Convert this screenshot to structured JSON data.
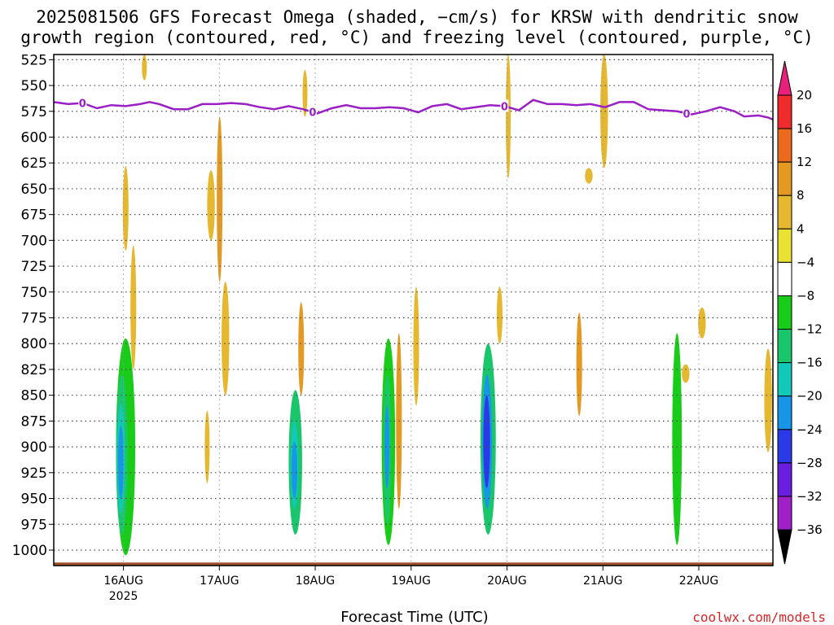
{
  "title": {
    "line1": "2025081506 GFS Forecast Omega (shaded, −cm/s) for KRSW with dendritic snow",
    "line2": "growth region (contoured, red, °C) and freezing level (contoured, purple, °C)"
  },
  "credit": "coolwx.com/models",
  "chart_data": {
    "type": "heatmap",
    "title": "2025081506 GFS Forecast Omega (shaded, −cm/s) for KRSW with dendritic snow growth region (contoured, red, °C) and freezing level (contoured, purple, °C)",
    "xlabel": "Forecast Time (UTC)",
    "ylabel": "",
    "x_ticks": [
      {
        "day": 0.727,
        "label": "16AUG",
        "sub": "2025"
      },
      {
        "day": 1.727,
        "label": "17AUG",
        "sub": ""
      },
      {
        "day": 2.727,
        "label": "18AUG",
        "sub": ""
      },
      {
        "day": 3.727,
        "label": "19AUG",
        "sub": ""
      },
      {
        "day": 4.727,
        "label": "20AUG",
        "sub": ""
      },
      {
        "day": 5.727,
        "label": "21AUG",
        "sub": ""
      },
      {
        "day": 6.727,
        "label": "22AUG",
        "sub": ""
      }
    ],
    "x_range_days": [
      0,
      7.5
    ],
    "y_levels_hpa": [
      525,
      550,
      575,
      600,
      625,
      650,
      675,
      700,
      725,
      750,
      775,
      800,
      825,
      850,
      875,
      900,
      925,
      950,
      975,
      1000
    ],
    "y_range_hpa": [
      520,
      1015
    ],
    "grid": true,
    "colorbar": {
      "levels": [
        20,
        16,
        12,
        8,
        4,
        -4,
        -8,
        -12,
        -16,
        -20,
        -24,
        -28,
        -32,
        -36
      ],
      "colors": [
        "#e8207c",
        "#ef2b2b",
        "#ea6a1e",
        "#e49a22",
        "#e6b830",
        "#e9e233",
        "#ffffff",
        "#19cc19",
        "#1ac66b",
        "#12c8b8",
        "#1796e8",
        "#2a3ae6",
        "#6a1ee0",
        "#a020c8",
        "#a6a6a6",
        "#000000"
      ]
    },
    "freezing_level": {
      "label": "0",
      "points": [
        [
          0.0,
          566
        ],
        [
          0.15,
          568
        ],
        [
          0.3,
          567
        ],
        [
          0.45,
          572
        ],
        [
          0.6,
          569
        ],
        [
          0.75,
          570
        ],
        [
          0.9,
          568
        ],
        [
          1.0,
          566
        ],
        [
          1.1,
          568
        ],
        [
          1.25,
          573
        ],
        [
          1.4,
          573
        ],
        [
          1.55,
          568
        ],
        [
          1.7,
          568
        ],
        [
          1.85,
          567
        ],
        [
          2.0,
          568
        ],
        [
          2.15,
          571
        ],
        [
          2.3,
          573
        ],
        [
          2.45,
          570
        ],
        [
          2.6,
          573
        ],
        [
          2.75,
          577
        ],
        [
          2.9,
          572
        ],
        [
          3.05,
          569
        ],
        [
          3.2,
          572
        ],
        [
          3.35,
          572
        ],
        [
          3.5,
          571
        ],
        [
          3.65,
          572
        ],
        [
          3.8,
          576
        ],
        [
          3.95,
          570
        ],
        [
          4.1,
          568
        ],
        [
          4.25,
          573
        ],
        [
          4.4,
          571
        ],
        [
          4.55,
          569
        ],
        [
          4.7,
          570
        ],
        [
          4.85,
          574
        ],
        [
          5.0,
          564
        ],
        [
          5.15,
          568
        ],
        [
          5.3,
          568
        ],
        [
          5.45,
          569
        ],
        [
          5.6,
          568
        ],
        [
          5.75,
          571
        ],
        [
          5.9,
          566
        ],
        [
          6.05,
          566
        ],
        [
          6.2,
          573
        ],
        [
          6.35,
          574
        ],
        [
          6.5,
          575
        ],
        [
          6.65,
          578
        ],
        [
          6.8,
          575
        ],
        [
          6.95,
          571
        ],
        [
          7.1,
          575
        ],
        [
          7.2,
          580
        ],
        [
          7.35,
          579
        ],
        [
          7.45,
          581
        ],
        [
          7.5,
          583
        ]
      ],
      "label_days": [
        0.3,
        2.7,
        4.7,
        6.6
      ]
    },
    "omega_regions": [
      {
        "x": 0.65,
        "w": 0.2,
        "p_top": 795,
        "p_bot": 1005,
        "value": -10
      },
      {
        "x": 0.65,
        "w": 0.12,
        "p_top": 830,
        "p_bot": 985,
        "value": -14
      },
      {
        "x": 0.66,
        "w": 0.08,
        "p_top": 858,
        "p_bot": 965,
        "value": -18
      },
      {
        "x": 0.67,
        "w": 0.06,
        "p_top": 880,
        "p_bot": 950,
        "value": -22
      },
      {
        "x": 2.45,
        "w": 0.2,
        "p_top": 820,
        "p_bot": 1002,
        "value": -8
      },
      {
        "x": 2.45,
        "w": 0.14,
        "p_top": 845,
        "p_bot": 985,
        "value": -14
      },
      {
        "x": 2.47,
        "w": 0.08,
        "p_top": 875,
        "p_bot": 960,
        "value": -18
      },
      {
        "x": 2.48,
        "w": 0.06,
        "p_top": 895,
        "p_bot": 950,
        "value": -22
      },
      {
        "x": 3.42,
        "w": 0.14,
        "p_top": 795,
        "p_bot": 995,
        "value": -10
      },
      {
        "x": 3.44,
        "w": 0.08,
        "p_top": 830,
        "p_bot": 975,
        "value": -16
      },
      {
        "x": 3.45,
        "w": 0.05,
        "p_top": 860,
        "p_bot": 940,
        "value": -22
      },
      {
        "x": 4.42,
        "w": 0.22,
        "p_top": 760,
        "p_bot": 1002,
        "value": -8
      },
      {
        "x": 4.45,
        "w": 0.16,
        "p_top": 800,
        "p_bot": 985,
        "value": -14
      },
      {
        "x": 4.47,
        "w": 0.1,
        "p_top": 830,
        "p_bot": 960,
        "value": -22
      },
      {
        "x": 4.48,
        "w": 0.07,
        "p_top": 850,
        "p_bot": 940,
        "value": -26
      },
      {
        "x": 6.45,
        "w": 0.1,
        "p_top": 790,
        "p_bot": 995,
        "value": -12
      },
      {
        "x": 5.38,
        "w": 0.08,
        "p_top": 830,
        "p_bot": 982,
        "value": -6
      },
      {
        "x": 5.77,
        "w": 0.1,
        "p_top": 895,
        "p_bot": 982,
        "value": -6
      },
      {
        "x": 0.77,
        "w": 0.05,
        "p_top": 545,
        "p_bot": 605,
        "value": -6
      },
      {
        "x": 0.98,
        "w": 0.04,
        "p_top": 578,
        "p_bot": 695,
        "value": -6
      },
      {
        "x": 1.98,
        "w": 0.1,
        "p_top": 572,
        "p_bot": 685,
        "value": -6
      },
      {
        "x": 2.78,
        "w": 0.06,
        "p_top": 633,
        "p_bot": 705,
        "value": -6
      },
      {
        "x": 2.88,
        "w": 0.06,
        "p_top": 805,
        "p_bot": 980,
        "value": -6
      },
      {
        "x": 3.62,
        "w": 0.05,
        "p_top": 520,
        "p_bot": 660,
        "value": -6
      },
      {
        "x": 4.05,
        "w": 0.05,
        "p_top": 530,
        "p_bot": 610,
        "value": -6
      },
      {
        "x": 4.3,
        "w": 0.04,
        "p_top": 830,
        "p_bot": 880,
        "value": -6
      },
      {
        "x": 7.2,
        "w": 0.08,
        "p_top": 945,
        "p_bot": 960,
        "value": -6
      }
    ],
    "positive_regions": [
      {
        "x": 0.72,
        "w": 0.06,
        "p_top": 628,
        "p_bot": 710,
        "value": 4
      },
      {
        "x": 0.8,
        "w": 0.06,
        "p_top": 705,
        "p_bot": 825,
        "value": 4
      },
      {
        "x": 1.6,
        "w": 0.08,
        "p_top": 632,
        "p_bot": 700,
        "value": 4
      },
      {
        "x": 1.7,
        "w": 0.06,
        "p_top": 580,
        "p_bot": 740,
        "value": 8
      },
      {
        "x": 1.75,
        "w": 0.08,
        "p_top": 740,
        "p_bot": 850,
        "value": 4
      },
      {
        "x": 1.58,
        "w": 0.04,
        "p_top": 865,
        "p_bot": 935,
        "value": 4
      },
      {
        "x": 2.55,
        "w": 0.06,
        "p_top": 760,
        "p_bot": 850,
        "value": 8
      },
      {
        "x": 2.6,
        "w": 0.04,
        "p_top": 535,
        "p_bot": 580,
        "value": 4
      },
      {
        "x": 3.57,
        "w": 0.06,
        "p_top": 790,
        "p_bot": 960,
        "value": 8
      },
      {
        "x": 3.75,
        "w": 0.06,
        "p_top": 745,
        "p_bot": 860,
        "value": 4
      },
      {
        "x": 4.62,
        "w": 0.06,
        "p_top": 745,
        "p_bot": 800,
        "value": 4
      },
      {
        "x": 4.72,
        "w": 0.04,
        "p_top": 520,
        "p_bot": 640,
        "value": 4
      },
      {
        "x": 5.45,
        "w": 0.06,
        "p_top": 770,
        "p_bot": 870,
        "value": 8
      },
      {
        "x": 5.7,
        "w": 0.08,
        "p_top": 520,
        "p_bot": 630,
        "value": 4
      },
      {
        "x": 6.55,
        "w": 0.08,
        "p_top": 820,
        "p_bot": 838,
        "value": 4
      },
      {
        "x": 6.72,
        "w": 0.08,
        "p_top": 765,
        "p_bot": 795,
        "value": 4
      },
      {
        "x": 7.41,
        "w": 0.08,
        "p_top": 805,
        "p_bot": 905,
        "value": 4
      },
      {
        "x": 0.93,
        "w": 0.03,
        "p_top": 520,
        "p_bot": 545,
        "value": 4
      },
      {
        "x": 5.54,
        "w": 0.08,
        "p_top": 630,
        "p_bot": 645,
        "value": 4
      }
    ],
    "terrain": {
      "p_surface": 1012
    }
  },
  "colors": {
    "freezing_line": "#9a1fc4",
    "terrain": "#a0522d",
    "grid": "#4a4a4a"
  }
}
